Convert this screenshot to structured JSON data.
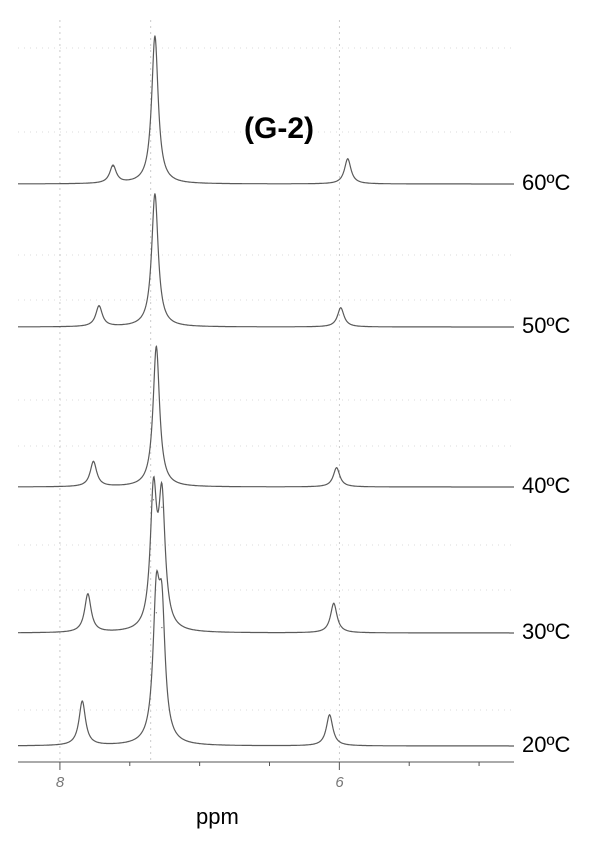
{
  "chart_data": {
    "type": "line",
    "title": "(G-2)",
    "xlabel": "ppm",
    "ylabel": "",
    "xlim": [
      8.3,
      4.75
    ],
    "x_reversed": true,
    "xticks": [
      {
        "value": 8,
        "label": "8"
      },
      {
        "value": 6,
        "label": "6"
      }
    ],
    "grid": true,
    "series": [
      {
        "name": "60ºC",
        "peaks": [
          {
            "ppm": 7.62,
            "height": 0.12
          },
          {
            "ppm": 7.32,
            "height": 1.0
          },
          {
            "ppm": 5.94,
            "height": 0.17
          }
        ]
      },
      {
        "name": "50ºC",
        "peaks": [
          {
            "ppm": 7.72,
            "height": 0.14
          },
          {
            "ppm": 7.32,
            "height": 0.9
          },
          {
            "ppm": 5.99,
            "height": 0.13
          }
        ]
      },
      {
        "name": "40ºC",
        "peaks": [
          {
            "ppm": 7.76,
            "height": 0.17
          },
          {
            "ppm": 7.31,
            "height": 0.95
          },
          {
            "ppm": 6.02,
            "height": 0.13
          }
        ]
      },
      {
        "name": "30ºC",
        "peaks": [
          {
            "ppm": 7.8,
            "height": 0.26
          },
          {
            "ppm": 7.33,
            "height": 0.9
          },
          {
            "ppm": 7.27,
            "height": 0.85
          },
          {
            "ppm": 6.04,
            "height": 0.2
          }
        ]
      },
      {
        "name": "20ºC",
        "peaks": [
          {
            "ppm": 7.84,
            "height": 0.3
          },
          {
            "ppm": 7.31,
            "height": 0.9
          },
          {
            "ppm": 7.27,
            "height": 0.8
          },
          {
            "ppm": 6.07,
            "height": 0.21
          }
        ]
      }
    ]
  }
}
